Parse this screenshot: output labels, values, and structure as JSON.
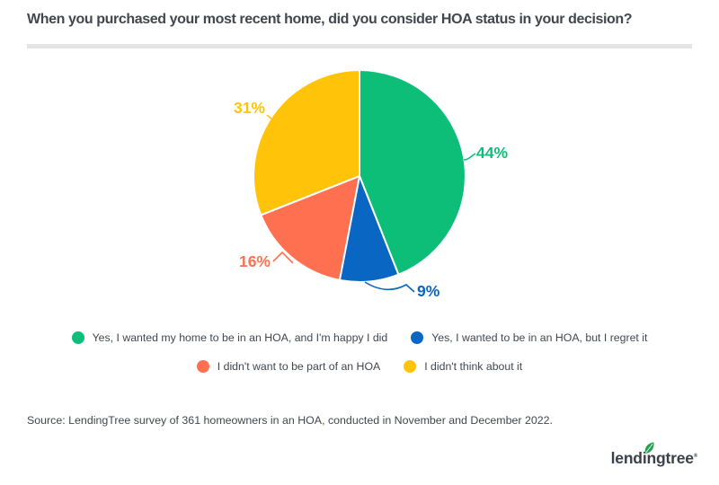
{
  "title": "When you purchased your most recent home, did you consider HOA status in your decision?",
  "source": "Source: LendingTree survey of 361 homeowners in an HOA, conducted in November and December 2022.",
  "logo": {
    "part1": "lend",
    "part2": "ingtree",
    "registered": "®",
    "leaf_color": "#23A24D",
    "text_color": "#3A4149"
  },
  "colors": {
    "title_text": "#41474D",
    "body_text": "#41474D",
    "divider": "#E4E4E4",
    "background": "#FFFFFF"
  },
  "chart_data": {
    "type": "pie",
    "title": "When you purchased your most recent home, did you consider HOA status in your decision?",
    "labels": [
      "Yes, I wanted my home to be in an HOA, and I'm happy I did",
      "Yes, I wanted to be in an HOA, but I regret it",
      "I didn't want to be part of an HOA",
      "I didn't think about it"
    ],
    "values": [
      44,
      9,
      16,
      31
    ],
    "value_labels": [
      "44%",
      "9%",
      "16%",
      "31%"
    ],
    "colors": [
      "#0DBE78",
      "#0A66C3",
      "#FF7050",
      "#FFC40A"
    ],
    "start_angle_deg": 0,
    "direction": "clockwise",
    "legend_position": "bottom",
    "legend_rows": [
      [
        0,
        1
      ],
      [
        2,
        3
      ]
    ]
  }
}
